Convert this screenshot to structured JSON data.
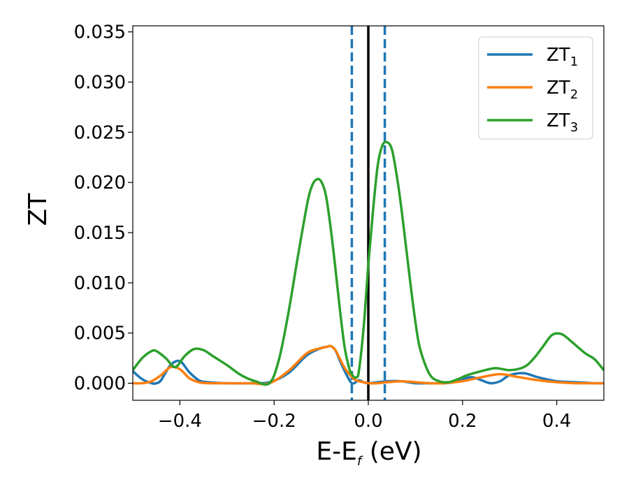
{
  "chart_data": {
    "type": "line",
    "xlabel_main": "E-E",
    "xlabel_sub": "f",
    "xlabel_unit": " (eV)",
    "ylabel": "ZT",
    "xlim": [
      -0.5,
      0.5
    ],
    "ylim": [
      -0.0017,
      0.0356
    ],
    "xticks": [
      -0.4,
      -0.2,
      0.0,
      0.2,
      0.4
    ],
    "xtick_labels": [
      "−0.4",
      "−0.2",
      "0.0",
      "0.2",
      "0.4"
    ],
    "yticks": [
      0.0,
      0.005,
      0.01,
      0.015,
      0.02,
      0.025,
      0.03,
      0.035
    ],
    "ytick_labels": [
      "0.000",
      "0.005",
      "0.010",
      "0.015",
      "0.020",
      "0.025",
      "0.030",
      "0.035"
    ],
    "legend_position": "top-right",
    "vertical_lines": [
      {
        "x": -0.035,
        "style": "dashed",
        "color": "#1f77b4"
      },
      {
        "x": 0.0,
        "style": "solid",
        "color": "#000000"
      },
      {
        "x": 0.035,
        "style": "dashed",
        "color": "#1f77b4"
      }
    ],
    "series": [
      {
        "name": "ZT",
        "name_sub": "1",
        "color": "#1f77b4",
        "x": [
          -0.5,
          -0.48,
          -0.46,
          -0.45,
          -0.44,
          -0.42,
          -0.4,
          -0.38,
          -0.36,
          -0.34,
          -0.3,
          -0.25,
          -0.21,
          -0.17,
          -0.13,
          -0.1,
          -0.09,
          -0.08,
          -0.07,
          -0.06,
          -0.05,
          -0.04,
          -0.035,
          -0.03,
          -0.02,
          -0.01,
          0.0,
          0.02,
          0.04,
          0.07,
          0.1,
          0.13,
          0.16,
          0.18,
          0.2,
          0.22,
          0.24,
          0.26,
          0.28,
          0.3,
          0.33,
          0.36,
          0.4,
          0.44,
          0.48,
          0.5
        ],
        "y": [
          0.0012,
          0.0004,
          0.0,
          0.0,
          0.0003,
          0.0018,
          0.0022,
          0.0011,
          0.0003,
          0.0001,
          0.0,
          0.0,
          0.0001,
          0.001,
          0.0028,
          0.0035,
          0.0036,
          0.0037,
          0.0033,
          0.0022,
          0.0012,
          0.0003,
          0.0,
          0.0,
          0.0003,
          0.0001,
          0.0,
          0.0001,
          0.0002,
          0.0002,
          0.0,
          0.0,
          0.0,
          0.0001,
          0.0004,
          0.0006,
          0.0003,
          0.0,
          0.0002,
          0.0008,
          0.001,
          0.0006,
          0.0002,
          0.0001,
          0.0,
          0.0
        ]
      },
      {
        "name": "ZT",
        "name_sub": "2",
        "color": "#ff7f0e",
        "x": [
          -0.5,
          -0.48,
          -0.46,
          -0.44,
          -0.42,
          -0.4,
          -0.38,
          -0.36,
          -0.34,
          -0.3,
          -0.25,
          -0.21,
          -0.17,
          -0.13,
          -0.1,
          -0.09,
          -0.08,
          -0.07,
          -0.06,
          -0.05,
          -0.04,
          -0.03,
          -0.02,
          -0.01,
          0.0,
          0.02,
          0.04,
          0.07,
          0.1,
          0.13,
          0.16,
          0.2,
          0.24,
          0.28,
          0.32,
          0.36,
          0.4,
          0.44,
          0.48,
          0.5
        ],
        "y": [
          0.0,
          0.0,
          0.0002,
          0.0008,
          0.0016,
          0.0014,
          0.0005,
          0.0001,
          0.0,
          0.0,
          0.0,
          0.0,
          0.0012,
          0.003,
          0.0035,
          0.0036,
          0.0037,
          0.0033,
          0.0024,
          0.0015,
          0.0009,
          0.0004,
          0.0002,
          0.0001,
          0.0,
          0.0,
          0.0001,
          0.0002,
          0.0001,
          0.0,
          0.0,
          0.0002,
          0.0006,
          0.0009,
          0.0006,
          0.0003,
          0.0001,
          0.0,
          0.0,
          0.0
        ]
      },
      {
        "name": "ZT",
        "name_sub": "3",
        "color": "#2ca02c",
        "x": [
          -0.5,
          -0.48,
          -0.46,
          -0.45,
          -0.43,
          -0.41,
          -0.39,
          -0.37,
          -0.35,
          -0.33,
          -0.3,
          -0.27,
          -0.24,
          -0.21,
          -0.19,
          -0.17,
          -0.15,
          -0.13,
          -0.12,
          -0.11,
          -0.1,
          -0.09,
          -0.08,
          -0.07,
          -0.06,
          -0.05,
          -0.04,
          -0.035,
          -0.03,
          -0.025,
          -0.02,
          -0.01,
          0.0,
          0.01,
          0.02,
          0.03,
          0.04,
          0.05,
          0.06,
          0.07,
          0.08,
          0.09,
          0.1,
          0.11,
          0.13,
          0.15,
          0.17,
          0.19,
          0.21,
          0.24,
          0.27,
          0.3,
          0.33,
          0.35,
          0.37,
          0.39,
          0.41,
          0.43,
          0.46,
          0.48,
          0.5
        ],
        "y": [
          0.0013,
          0.0025,
          0.0032,
          0.0032,
          0.0025,
          0.0016,
          0.0027,
          0.0034,
          0.0033,
          0.0027,
          0.0018,
          0.0008,
          0.0002,
          0.0,
          0.0023,
          0.0069,
          0.0125,
          0.0178,
          0.0196,
          0.0203,
          0.0201,
          0.0187,
          0.0155,
          0.0115,
          0.0072,
          0.0035,
          0.0014,
          0.0009,
          0.0006,
          0.0006,
          0.0012,
          0.0055,
          0.0118,
          0.0172,
          0.0217,
          0.0237,
          0.024,
          0.0233,
          0.0208,
          0.0175,
          0.0136,
          0.0097,
          0.0061,
          0.0034,
          0.0009,
          0.0002,
          0.0001,
          0.0004,
          0.0008,
          0.0012,
          0.0015,
          0.0013,
          0.0016,
          0.0024,
          0.0036,
          0.0048,
          0.0049,
          0.0042,
          0.003,
          0.0024,
          0.0013
        ]
      }
    ]
  }
}
